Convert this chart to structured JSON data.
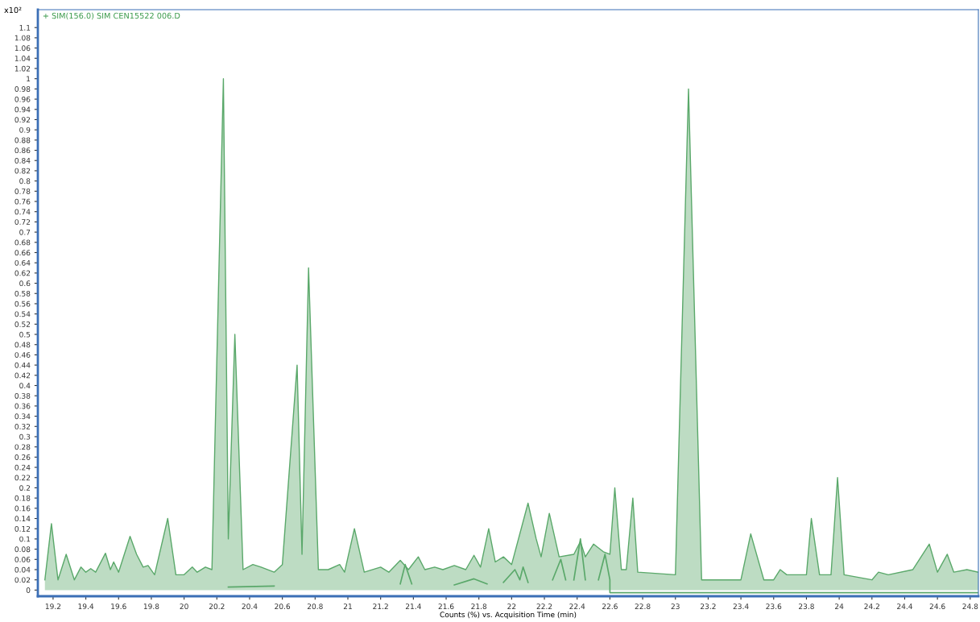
{
  "chart_data": {
    "type": "area",
    "title": "+ SIM(156.0) SIM CEN15522 006.D",
    "xlabel": "Counts (%) vs. Acquisition Time (min)",
    "annotations": [
      "x10²"
    ],
    "series": [
      {
        "color": "#5aa86a",
        "x": [
          19.15,
          19.19,
          19.23,
          19.28,
          19.33,
          19.37,
          19.4,
          19.43,
          19.46,
          19.52,
          19.55,
          19.57,
          19.6,
          19.67,
          19.71,
          19.75,
          19.78,
          19.82,
          19.9,
          19.95,
          20.0,
          20.05,
          20.08,
          20.13,
          20.17,
          20.24,
          20.27,
          20.31,
          20.36,
          20.42,
          20.47,
          20.55,
          20.6,
          20.69,
          20.72,
          20.76,
          20.82,
          20.88,
          20.95,
          20.98,
          21.04,
          21.1,
          21.2,
          21.25,
          21.32,
          21.37,
          21.43,
          21.47,
          21.53,
          21.58,
          21.65,
          21.72,
          21.77,
          21.81,
          21.86,
          21.9,
          21.95,
          22.0,
          22.1,
          22.15,
          22.18,
          22.23,
          22.29,
          22.38,
          22.42,
          22.45,
          22.5,
          22.56,
          22.6,
          22.63,
          22.67,
          22.7,
          22.74,
          22.77,
          23.0,
          23.08,
          23.16,
          23.4,
          23.46,
          23.54,
          23.6,
          23.64,
          23.68,
          23.8,
          23.83,
          23.88,
          23.95,
          23.99,
          24.03,
          24.2,
          24.24,
          24.3,
          24.45,
          24.55,
          24.6,
          24.66,
          24.7,
          24.78,
          24.85
        ],
        "values": [
          0.02,
          0.13,
          0.02,
          0.07,
          0.02,
          0.045,
          0.035,
          0.042,
          0.035,
          0.072,
          0.04,
          0.055,
          0.035,
          0.105,
          0.07,
          0.045,
          0.048,
          0.03,
          0.14,
          0.03,
          0.03,
          0.045,
          0.035,
          0.045,
          0.04,
          1.0,
          0.1,
          0.5,
          0.04,
          0.05,
          0.045,
          0.035,
          0.05,
          0.44,
          0.07,
          0.63,
          0.04,
          0.04,
          0.05,
          0.035,
          0.12,
          0.035,
          0.045,
          0.035,
          0.058,
          0.04,
          0.065,
          0.04,
          0.045,
          0.04,
          0.048,
          0.04,
          0.068,
          0.045,
          0.12,
          0.055,
          0.065,
          0.05,
          0.17,
          0.1,
          0.065,
          0.15,
          0.065,
          0.07,
          0.095,
          0.065,
          0.09,
          0.075,
          0.07,
          0.2,
          0.04,
          0.04,
          0.18,
          0.035,
          0.03,
          0.98,
          0.02,
          0.02,
          0.11,
          0.02,
          0.02,
          0.04,
          0.03,
          0.03,
          0.14,
          0.03,
          0.03,
          0.22,
          0.03,
          0.02,
          0.035,
          0.03,
          0.04,
          0.09,
          0.035,
          0.07,
          0.035,
          0.04,
          0.035
        ]
      },
      {
        "type": "line",
        "color": "#5aa86a",
        "x": [
          20.27,
          20.55,
          20.56,
          21.32,
          21.35,
          21.39,
          21.4,
          21.65,
          21.77,
          21.85,
          21.86,
          21.95,
          22.02,
          22.05,
          22.07,
          22.1,
          22.11,
          22.25,
          22.3,
          22.33,
          22.34,
          22.38,
          22.42,
          22.45,
          22.46,
          22.53,
          22.57,
          22.6,
          22.6,
          24.85
        ],
        "values": [
          0.006,
          0.008,
          null,
          0.012,
          0.05,
          0.012,
          null,
          0.01,
          0.022,
          0.012,
          null,
          0.015,
          0.04,
          0.02,
          0.045,
          0.015,
          null,
          0.02,
          0.06,
          0.02,
          null,
          0.02,
          0.1,
          0.02,
          null,
          0.02,
          0.07,
          0.02,
          -0.005,
          -0.005
        ]
      }
    ],
    "xlim": [
      19.107,
      24.85
    ],
    "ylim": [
      -0.012,
      1.135
    ],
    "xticks": [
      19.2,
      19.4,
      19.6,
      19.8,
      20,
      20.2,
      20.4,
      20.6,
      20.8,
      21,
      21.2,
      21.4,
      21.6,
      21.8,
      22,
      22.2,
      22.4,
      22.6,
      22.8,
      23,
      23.2,
      23.4,
      23.6,
      23.8,
      24,
      24.2,
      24.4,
      24.6,
      24.8
    ],
    "yticks": [
      0,
      0.02,
      0.04,
      0.06,
      0.08,
      0.1,
      0.12,
      0.14,
      0.16,
      0.18,
      0.2,
      0.22,
      0.24,
      0.26,
      0.28,
      0.3,
      0.32,
      0.34,
      0.36,
      0.38,
      0.4,
      0.42,
      0.44,
      0.46,
      0.48,
      0.5,
      0.52,
      0.54,
      0.56,
      0.58,
      0.6,
      0.62,
      0.64,
      0.66,
      0.68,
      0.7,
      0.72,
      0.74,
      0.76,
      0.78,
      0.8,
      0.82,
      0.84,
      0.86,
      0.88,
      0.9,
      0.92,
      0.94,
      0.96,
      0.98,
      1,
      1.02,
      1.04,
      1.06,
      1.08,
      1.1
    ]
  }
}
